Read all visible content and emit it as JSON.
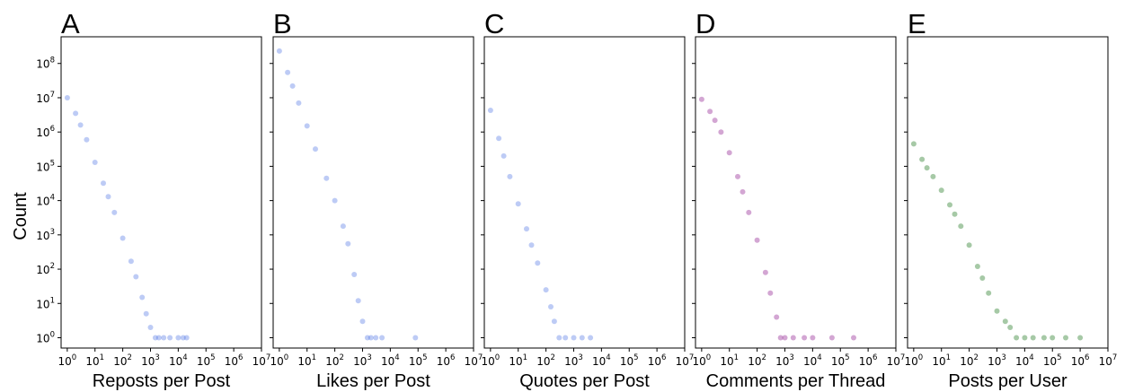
{
  "figure": {
    "ylabel": "Count"
  },
  "chart_data": [
    {
      "type": "scatter",
      "panel_label": "A",
      "xlabel": "Reposts per Post",
      "ylabel": "Count",
      "xscale": "log",
      "yscale": "log",
      "xlim": [
        0.6,
        10000000
      ],
      "ylim": [
        0.5,
        600000000
      ],
      "color": "#4169E1",
      "grid": false,
      "x_tick_labels": [
        "10^0",
        "10^1",
        "10^2",
        "10^3",
        "10^4",
        "10^5",
        "10^6",
        "10^7"
      ],
      "y_tick_labels": [
        "10^0",
        "10^1",
        "10^2",
        "10^3",
        "10^4",
        "10^5",
        "10^6",
        "10^7",
        "10^8"
      ],
      "series": [
        {
          "values": [
            [
              1,
              10000000
            ],
            [
              2,
              3500000
            ],
            [
              3,
              1600000
            ],
            [
              5,
              600000
            ],
            [
              10,
              130000
            ],
            [
              20,
              32000
            ],
            [
              30,
              13000
            ],
            [
              50,
              4500
            ],
            [
              100,
              800
            ],
            [
              200,
              170
            ],
            [
              300,
              60
            ],
            [
              500,
              15
            ],
            [
              700,
              5
            ],
            [
              1000,
              2
            ],
            [
              1500,
              1
            ],
            [
              2000,
              1
            ],
            [
              3000,
              1
            ],
            [
              5000,
              1
            ],
            [
              10000,
              1
            ],
            [
              15000,
              1
            ],
            [
              20000,
              1
            ]
          ]
        }
      ]
    },
    {
      "type": "scatter",
      "panel_label": "B",
      "xlabel": "Likes per Post",
      "xscale": "log",
      "yscale": "log",
      "xlim": [
        0.6,
        10000000
      ],
      "ylim": [
        0.5,
        600000000
      ],
      "color": "#4169E1",
      "grid": false,
      "x_tick_labels": [
        "10^0",
        "10^1",
        "10^2",
        "10^3",
        "10^4",
        "10^5",
        "10^6",
        "10^7"
      ],
      "y_tick_labels": [
        "10^0",
        "10^1",
        "10^2",
        "10^3",
        "10^4",
        "10^5",
        "10^6",
        "10^7",
        "10^8"
      ],
      "series": [
        {
          "values": [
            [
              1,
              230000000
            ],
            [
              2,
              55000000
            ],
            [
              3,
              22000000
            ],
            [
              5,
              7000000
            ],
            [
              10,
              1500000
            ],
            [
              20,
              320000
            ],
            [
              50,
              45000
            ],
            [
              100,
              10000
            ],
            [
              200,
              1800
            ],
            [
              300,
              550
            ],
            [
              500,
              70
            ],
            [
              700,
              12
            ],
            [
              1000,
              3
            ],
            [
              1500,
              1
            ],
            [
              2000,
              1
            ],
            [
              3000,
              1
            ],
            [
              5000,
              1
            ],
            [
              80000,
              1
            ]
          ]
        }
      ]
    },
    {
      "type": "scatter",
      "panel_label": "C",
      "xlabel": "Quotes per Post",
      "xscale": "log",
      "yscale": "log",
      "xlim": [
        0.6,
        10000000
      ],
      "ylim": [
        0.5,
        600000000
      ],
      "color": "#4169E1",
      "grid": false,
      "x_tick_labels": [
        "10^0",
        "10^1",
        "10^2",
        "10^3",
        "10^4",
        "10^5",
        "10^6",
        "10^7"
      ],
      "y_tick_labels": [
        "10^0",
        "10^1",
        "10^2",
        "10^3",
        "10^4",
        "10^5",
        "10^6",
        "10^7",
        "10^8"
      ],
      "series": [
        {
          "values": [
            [
              1,
              4300000
            ],
            [
              2,
              650000
            ],
            [
              3,
              200000
            ],
            [
              5,
              50000
            ],
            [
              10,
              8000
            ],
            [
              20,
              1500
            ],
            [
              30,
              500
            ],
            [
              50,
              150
            ],
            [
              100,
              25
            ],
            [
              150,
              8
            ],
            [
              200,
              3
            ],
            [
              300,
              1
            ],
            [
              500,
              1
            ],
            [
              1000,
              1
            ],
            [
              2000,
              1
            ],
            [
              4000,
              1
            ]
          ]
        }
      ]
    },
    {
      "type": "scatter",
      "panel_label": "D",
      "xlabel": "Comments per Thread",
      "xscale": "log",
      "yscale": "log",
      "xlim": [
        0.6,
        10000000
      ],
      "ylim": [
        0.5,
        600000000
      ],
      "color": "#800080",
      "grid": false,
      "x_tick_labels": [
        "10^0",
        "10^1",
        "10^2",
        "10^3",
        "10^4",
        "10^5",
        "10^6",
        "10^7"
      ],
      "y_tick_labels": [
        "10^0",
        "10^1",
        "10^2",
        "10^3",
        "10^4",
        "10^5",
        "10^6",
        "10^7",
        "10^8"
      ],
      "series": [
        {
          "values": [
            [
              1,
              9000000
            ],
            [
              2,
              4000000
            ],
            [
              3,
              2200000
            ],
            [
              5,
              1000000
            ],
            [
              10,
              250000
            ],
            [
              20,
              50000
            ],
            [
              30,
              18000
            ],
            [
              50,
              4500
            ],
            [
              100,
              700
            ],
            [
              200,
              80
            ],
            [
              300,
              20
            ],
            [
              500,
              4
            ],
            [
              700,
              1
            ],
            [
              1000,
              1
            ],
            [
              2000,
              1
            ],
            [
              5000,
              1
            ],
            [
              10000,
              1
            ],
            [
              50000,
              1
            ],
            [
              300000,
              1
            ]
          ]
        }
      ]
    },
    {
      "type": "scatter",
      "panel_label": "E",
      "xlabel": "Posts per User",
      "xscale": "log",
      "yscale": "log",
      "xlim": [
        0.6,
        10000000
      ],
      "ylim": [
        0.5,
        600000000
      ],
      "color": "#006400",
      "grid": false,
      "x_tick_labels": [
        "10^0",
        "10^1",
        "10^2",
        "10^3",
        "10^4",
        "10^5",
        "10^6",
        "10^7"
      ],
      "y_tick_labels": [
        "10^0",
        "10^1",
        "10^2",
        "10^3",
        "10^4",
        "10^5",
        "10^6",
        "10^7",
        "10^8"
      ],
      "series": [
        {
          "values": [
            [
              1,
              450000
            ],
            [
              2,
              160000
            ],
            [
              3,
              90000
            ],
            [
              5,
              50000
            ],
            [
              10,
              20000
            ],
            [
              20,
              7500
            ],
            [
              30,
              4000
            ],
            [
              50,
              1800
            ],
            [
              100,
              500
            ],
            [
              200,
              120
            ],
            [
              300,
              55
            ],
            [
              500,
              20
            ],
            [
              1000,
              6
            ],
            [
              2000,
              3
            ],
            [
              3000,
              2
            ],
            [
              5000,
              1
            ],
            [
              10000,
              1
            ],
            [
              20000,
              1
            ],
            [
              50000,
              1
            ],
            [
              100000,
              1
            ],
            [
              300000,
              1
            ],
            [
              1000000,
              1
            ]
          ]
        }
      ]
    }
  ]
}
